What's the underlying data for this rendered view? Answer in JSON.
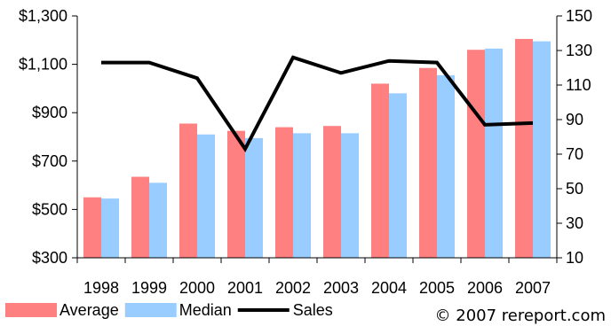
{
  "chart_data": {
    "type": "bar",
    "categories": [
      "1998",
      "1999",
      "2000",
      "2001",
      "2002",
      "2003",
      "2004",
      "2005",
      "2006",
      "2007"
    ],
    "series": [
      {
        "name": "Average",
        "type": "bar",
        "axis": "left",
        "color": "#FF8080",
        "values": [
          550,
          635,
          855,
          825,
          840,
          845,
          1020,
          1085,
          1160,
          1205
        ]
      },
      {
        "name": "Median",
        "type": "bar",
        "axis": "left",
        "color": "#99CCFF",
        "values": [
          545,
          610,
          810,
          795,
          815,
          815,
          980,
          1055,
          1165,
          1195
        ]
      },
      {
        "name": "Sales",
        "type": "line",
        "axis": "right",
        "color": "#000000",
        "values": [
          123,
          123,
          114,
          73,
          126,
          117,
          124,
          123,
          87,
          88
        ]
      }
    ],
    "y_left": {
      "min": 300,
      "max": 1300,
      "ticks": [
        300,
        500,
        700,
        900,
        1100,
        1300
      ],
      "tick_labels": [
        "$300",
        "$500",
        "$700",
        "$900",
        "$1,100",
        "$1,300"
      ]
    },
    "y_right": {
      "min": 10,
      "max": 150,
      "ticks": [
        10,
        30,
        50,
        70,
        90,
        110,
        130,
        150
      ],
      "tick_labels": [
        "10",
        "30",
        "50",
        "70",
        "90",
        "110",
        "130",
        "150"
      ]
    },
    "grid": false,
    "legend_position": "bottom-left",
    "title": "",
    "xlabel": "",
    "ylabel": ""
  },
  "copyright": "© 2007 rereport.com"
}
